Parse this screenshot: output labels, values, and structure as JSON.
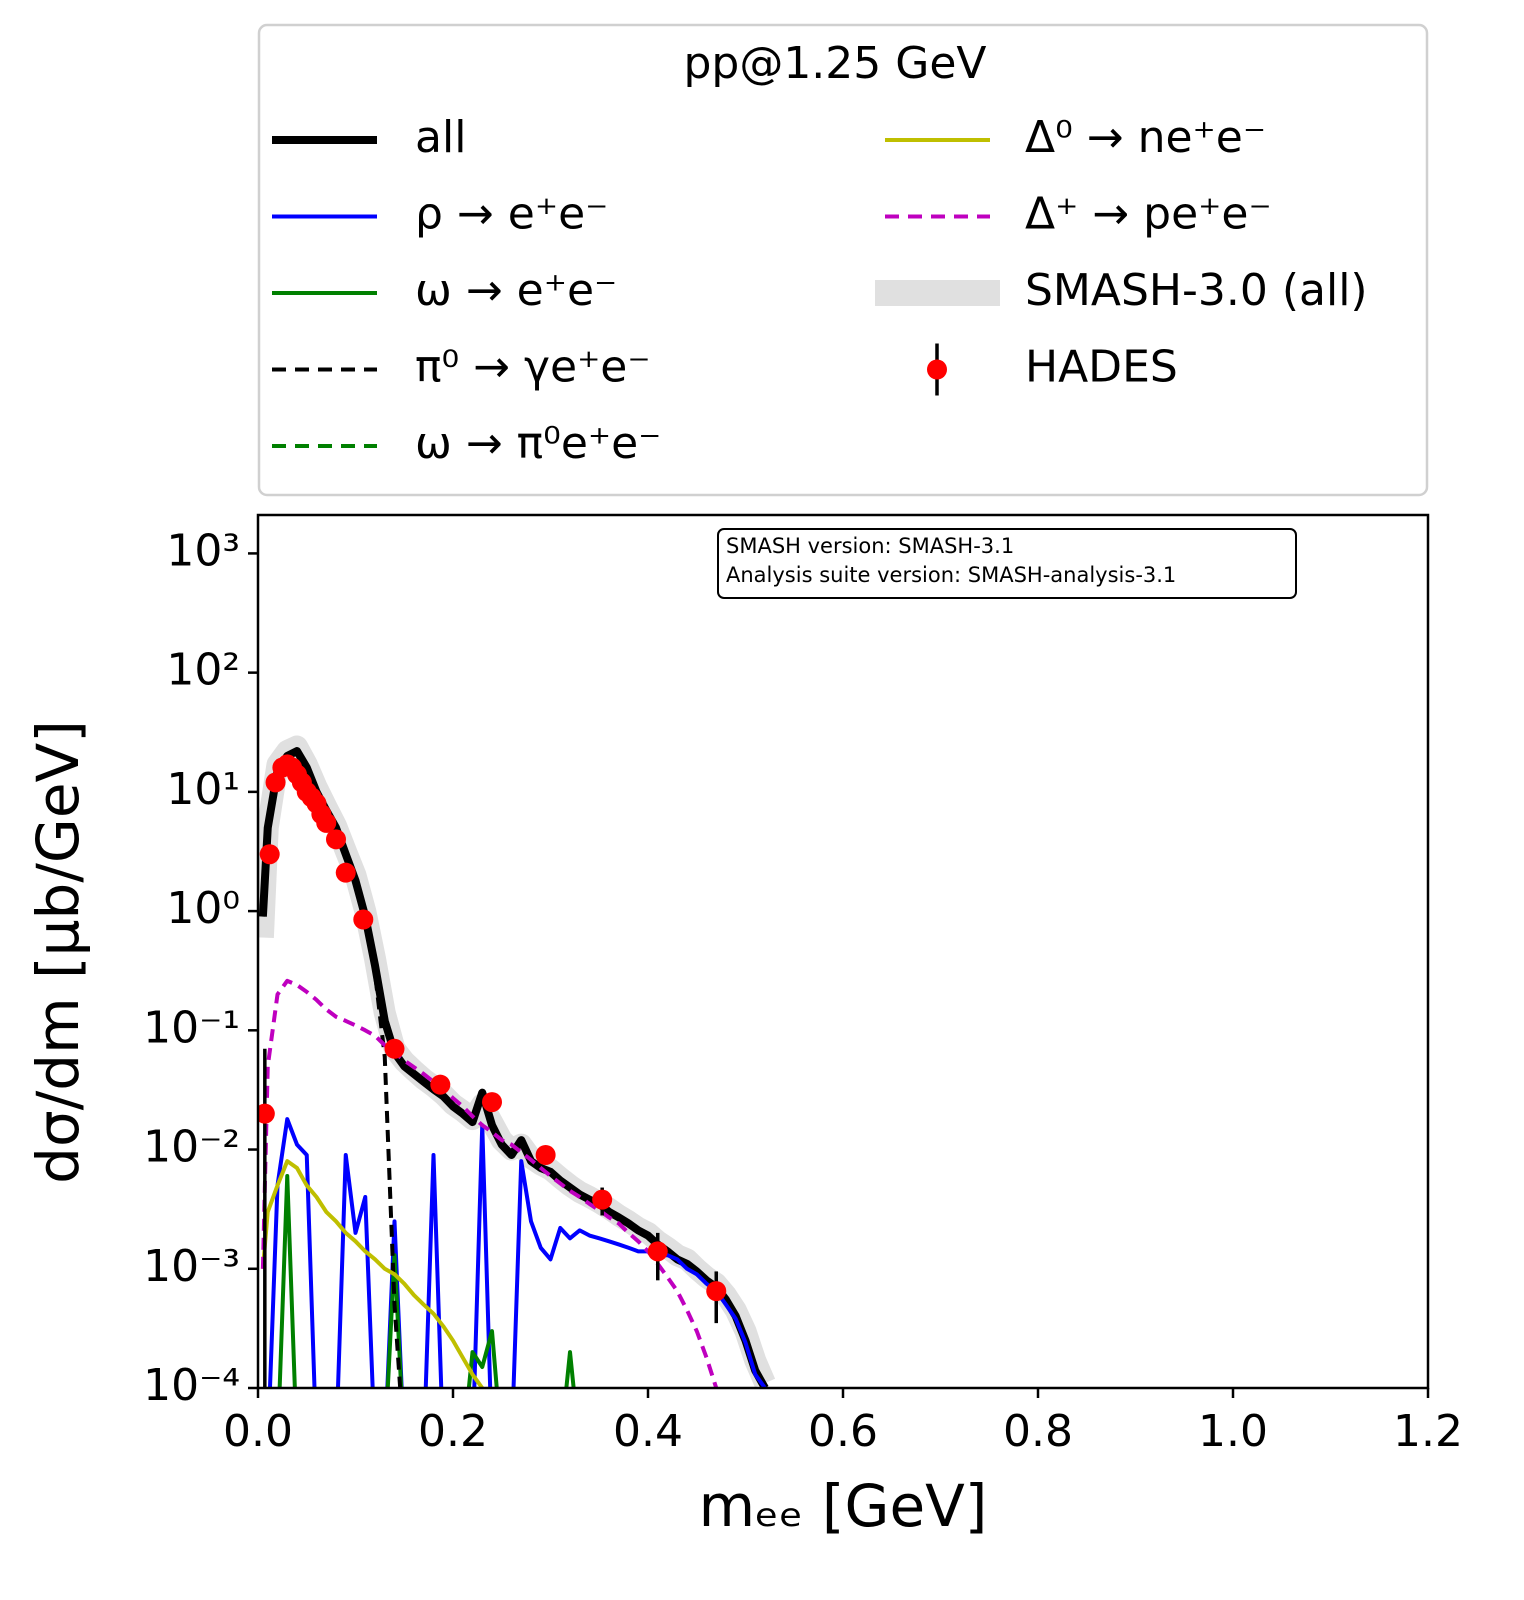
{
  "chart_data": {
    "type": "line",
    "legend_title": "pp@1.25 GeV",
    "legend": "upper center",
    "xlabel": "mₑₑ [GeV]",
    "ylabel": "dσ/dm [μb/GeV]",
    "yscale": "log",
    "annotation": [
      "SMASH version: SMASH-3.1",
      "Analysis suite version: SMASH-analysis-3.1"
    ],
    "xlim": [
      0,
      1.2
    ],
    "xticks": [
      {
        "value": 0,
        "label": "0.0"
      },
      0.2,
      0.4,
      0.6,
      0.8,
      {
        "value": 1,
        "label": "1.0"
      },
      1.2
    ],
    "ylim": [
      0.0001,
      2100
    ],
    "yticks": [
      {
        "value": 0.0001,
        "label": "10⁻⁴"
      },
      {
        "value": 0.001,
        "label": "10⁻³"
      },
      {
        "value": 0.01,
        "label": "10⁻²"
      },
      {
        "value": 0.1,
        "label": "10⁻¹"
      },
      {
        "value": 1,
        "label": "10⁰"
      },
      {
        "value": 10,
        "label": "10¹"
      },
      {
        "value": 100,
        "label": "10²"
      },
      {
        "value": 1000,
        "label": "10³"
      }
    ],
    "x": [
      0.005,
      0.01,
      0.02,
      0.03,
      0.04,
      0.05,
      0.06,
      0.07,
      0.08,
      0.09,
      0.1,
      0.11,
      0.12,
      0.13,
      0.14,
      0.15,
      0.16,
      0.17,
      0.18,
      0.19,
      0.2,
      0.21,
      0.22,
      0.23,
      0.24,
      0.25,
      0.26,
      0.27,
      0.28,
      0.29,
      0.3,
      0.31,
      0.32,
      0.33,
      0.34,
      0.35,
      0.36,
      0.37,
      0.38,
      0.39,
      0.4,
      0.41,
      0.42,
      0.43,
      0.44,
      0.45,
      0.46,
      0.47,
      0.48,
      0.49,
      0.5,
      0.51,
      0.52
    ],
    "series": [
      {
        "name": "all",
        "color": "#000000",
        "linewidth": 8,
        "values": [
          0.9,
          5,
          15,
          20,
          22,
          16,
          10,
          7,
          5,
          3,
          1.8,
          0.9,
          0.35,
          0.12,
          0.065,
          0.05,
          0.043,
          0.037,
          0.032,
          0.028,
          0.023,
          0.02,
          0.017,
          0.03,
          0.016,
          0.011,
          0.009,
          0.012,
          0.008,
          0.007,
          0.0065,
          0.0055,
          0.0048,
          0.0042,
          0.0038,
          0.0035,
          0.003,
          0.0027,
          0.0024,
          0.0021,
          0.0019,
          0.0016,
          0.0014,
          0.0012,
          0.0011,
          0.00095,
          0.0008,
          0.0007,
          0.00055,
          0.0004,
          0.00025,
          0.00014,
          0.0001
        ]
      },
      {
        "name": "ρ → e⁺e⁻",
        "color": "#0000ff",
        "linewidth": 4,
        "values": [
          null,
          0,
          0.005,
          0.018,
          0.011,
          0.009,
          0,
          0,
          0,
          0.009,
          0.002,
          0.004,
          0,
          0,
          0.0025,
          0,
          0,
          0,
          0.009,
          0,
          0,
          0,
          0,
          0.016,
          0,
          0,
          0,
          0.008,
          0.0025,
          0.0015,
          0.0012,
          0.0022,
          0.0018,
          0.0021,
          0.0019,
          0.0018,
          0.0017,
          0.0016,
          0.0015,
          0.0014,
          0.0014,
          0.0013,
          0.0013,
          0.0012,
          0.001,
          0.0009,
          0.00075,
          0.00065,
          0.0005,
          0.00038,
          0.00024,
          0.00013,
          0.0001
        ]
      },
      {
        "name": "ω → e⁺e⁻",
        "color": "#008000",
        "linewidth": 4,
        "values": [
          null,
          0,
          0,
          0.006,
          0,
          0,
          0,
          0,
          0,
          0,
          0,
          0,
          0,
          0,
          0.0013,
          0,
          0,
          0,
          0,
          0,
          0,
          0,
          0.0002,
          0.00015,
          0.0003,
          0,
          0,
          0,
          0,
          0,
          0,
          0,
          0.0002,
          0,
          null,
          null,
          null,
          null,
          null,
          null,
          null,
          null,
          null,
          null,
          null,
          null,
          null,
          null,
          null,
          null,
          null,
          null,
          null
        ]
      },
      {
        "name": "π⁰ → γe⁺e⁻",
        "color": "#000000",
        "linewidth": 4,
        "dash": true,
        "values": [
          0.9,
          5,
          15,
          20,
          22,
          16,
          10,
          7,
          5,
          3,
          1.8,
          0.9,
          0.3,
          0.06,
          0.0005,
          0,
          null,
          null,
          null,
          null,
          null,
          null,
          null,
          null,
          null,
          null,
          null,
          null,
          null,
          null,
          null,
          null,
          null,
          null,
          null,
          null,
          null,
          null,
          null,
          null,
          null,
          null,
          null,
          null,
          null,
          null,
          null,
          null,
          null,
          null,
          null,
          null,
          null
        ]
      },
      {
        "name": "ω → π⁰e⁺e⁻",
        "color": "#008000",
        "linewidth": 4,
        "dash": true
      },
      {
        "name": "Δ⁰ → ne⁺e⁻",
        "color": "#bfbf00",
        "linewidth": 4,
        "values": [
          0.001,
          0.003,
          0.005,
          0.008,
          0.007,
          0.005,
          0.004,
          0.003,
          0.0025,
          0.002,
          0.0017,
          0.0014,
          0.0012,
          0.001,
          0.0009,
          0.00075,
          0.0006,
          0.0005,
          0.00042,
          0.00033,
          0.00025,
          0.00018,
          0.00013,
          0.0001,
          null,
          null,
          null,
          null,
          null,
          null,
          null,
          null,
          null,
          null,
          null,
          null,
          null,
          null,
          null,
          null,
          null,
          null,
          null,
          null,
          null,
          null,
          null,
          null,
          null,
          null,
          null,
          null,
          null
        ]
      },
      {
        "name": "Δ⁺ → pe⁺e⁻",
        "color": "#bf00bf",
        "linewidth": 4,
        "dash": true,
        "values": [
          0.001,
          0.05,
          0.2,
          0.26,
          0.24,
          0.21,
          0.18,
          0.15,
          0.13,
          0.12,
          0.11,
          0.1,
          0.09,
          0.075,
          0.065,
          0.056,
          0.049,
          0.043,
          0.037,
          0.032,
          0.027,
          0.023,
          0.019,
          0.016,
          0.014,
          0.012,
          0.011,
          0.0095,
          0.0082,
          0.007,
          0.006,
          0.0052,
          0.0045,
          0.004,
          0.0035,
          0.0031,
          0.0027,
          0.0024,
          0.002,
          0.0017,
          0.0014,
          0.0011,
          0.00085,
          0.00065,
          0.00045,
          0.0003,
          0.00018,
          0.0001,
          null,
          null,
          null,
          null,
          null
        ]
      },
      {
        "name": "SMASH-3.0 (all)",
        "color": "#e0e0e0",
        "linewidth": 22,
        "band": true,
        "values": [
          0.6,
          5,
          17,
          22,
          24,
          17,
          11,
          7.5,
          5.2,
          3.2,
          2,
          1,
          0.4,
          0.14,
          0.07,
          0.055,
          0.046,
          0.039,
          0.034,
          0.029,
          0.024,
          0.021,
          0.018,
          0.024,
          0.017,
          0.012,
          0.01,
          0.011,
          0.0085,
          0.0075,
          0.0068,
          0.0058,
          0.005,
          0.0044,
          0.004,
          0.0036,
          0.0032,
          0.0028,
          0.0025,
          0.0022,
          0.002,
          0.0017,
          0.0015,
          0.0013,
          0.0012,
          0.001,
          0.00085,
          0.00075,
          0.0006,
          0.00045,
          0.0003,
          0.00017,
          0.00011
        ]
      },
      {
        "name": "HADES",
        "color": "#ff0000",
        "points": true,
        "x": [
          0.007,
          0.012,
          0.018,
          0.025,
          0.03,
          0.035,
          0.04,
          0.045,
          0.05,
          0.055,
          0.06,
          0.065,
          0.07,
          0.08,
          0.09,
          0.108,
          0.14,
          0.187,
          0.24,
          0.295,
          0.353,
          0.41,
          0.47
        ],
        "values": [
          0.02,
          3,
          12,
          16,
          17,
          16,
          14,
          12,
          10,
          9,
          8,
          6.5,
          5.5,
          4,
          2.1,
          0.85,
          0.07,
          0.035,
          0.025,
          0.009,
          0.0038,
          0.0014,
          0.00065
        ],
        "errors": [
          0.05,
          0.3,
          1,
          1.5,
          1.5,
          1.5,
          1.3,
          1.1,
          1,
          0.9,
          0.8,
          0.7,
          0.6,
          0.4,
          0.2,
          0.09,
          0.01,
          0.005,
          0.004,
          0.0015,
          0.001,
          0.0006,
          0.0003
        ]
      }
    ]
  }
}
